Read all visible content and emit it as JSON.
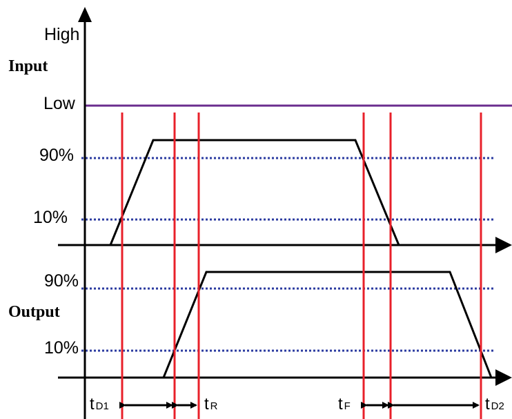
{
  "colors": {
    "axis": "#000000",
    "signal": "#000000",
    "marker": "#e8202a",
    "low_line": "#6a2c8e",
    "threshold": "#2b3ba0"
  },
  "labels": {
    "high": "High",
    "input": "Input",
    "low": "Low",
    "output": "Output",
    "in_90": "90%",
    "in_10": "10%",
    "out_90": "90%",
    "out_10": "10%"
  },
  "timing": {
    "td1": {
      "t": "t",
      "sub": "D1"
    },
    "tr": {
      "t": "t",
      "sub": "R"
    },
    "tf": {
      "t": "t",
      "sub": "F"
    },
    "td2": {
      "t": "t",
      "sub": "D2"
    }
  }
}
